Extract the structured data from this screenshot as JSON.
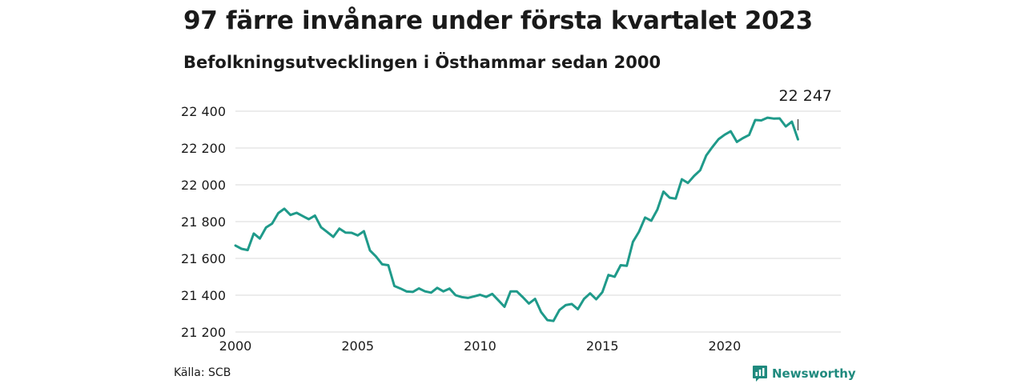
{
  "header": {
    "title": "97 färre invånare under första kvartalet 2023",
    "subtitle": "Befolkningsutvecklingen i Östhammar sedan 2000"
  },
  "footer": {
    "source": "Källa: SCB",
    "brand": "Newsworthy"
  },
  "colors": {
    "line": "#1f9a8a",
    "grid": "#d9d9d9",
    "brand": "#1f8a7e"
  },
  "chart_data": {
    "type": "line",
    "x_unit": "quarter",
    "x_start": "2000 Q1",
    "xlim": [
      2000,
      2024.75
    ],
    "ylim": [
      21200,
      22400
    ],
    "y_ticks": [
      21200,
      21400,
      21600,
      21800,
      22000,
      22200,
      22400
    ],
    "y_tick_labels": [
      "21 200",
      "21 400",
      "21 600",
      "21 800",
      "22 000",
      "22 200",
      "22 400"
    ],
    "x_ticks": [
      2000,
      2005,
      2010,
      2015,
      2020
    ],
    "x_tick_labels": [
      "2000",
      "2005",
      "2010",
      "2015",
      "2020"
    ],
    "grid": "horizontal",
    "last_value_label": "22 247",
    "series": [
      {
        "values": [
          21670,
          21652,
          21645,
          21735,
          21708,
          21768,
          21789,
          21846,
          21870,
          21836,
          21848,
          21830,
          21813,
          21833,
          21769,
          21744,
          21717,
          21762,
          21740,
          21739,
          21725,
          21748,
          21643,
          21610,
          21568,
          21563,
          21450,
          21436,
          21420,
          21418,
          21437,
          21421,
          21414,
          21440,
          21421,
          21436,
          21400,
          21390,
          21385,
          21393,
          21402,
          21391,
          21407,
          21372,
          21337,
          21421,
          21421,
          21389,
          21355,
          21380,
          21308,
          21265,
          21260,
          21320,
          21346,
          21352,
          21324,
          21380,
          21410,
          21378,
          21416,
          21510,
          21500,
          21563,
          21560,
          21690,
          21745,
          21822,
          21805,
          21865,
          21963,
          21930,
          21925,
          22030,
          22010,
          22048,
          22079,
          22160,
          22205,
          22248,
          22272,
          22291,
          22233,
          22254,
          22271,
          22352,
          22350,
          22365,
          22360,
          22361,
          22317,
          22343,
          22247
        ]
      }
    ]
  }
}
